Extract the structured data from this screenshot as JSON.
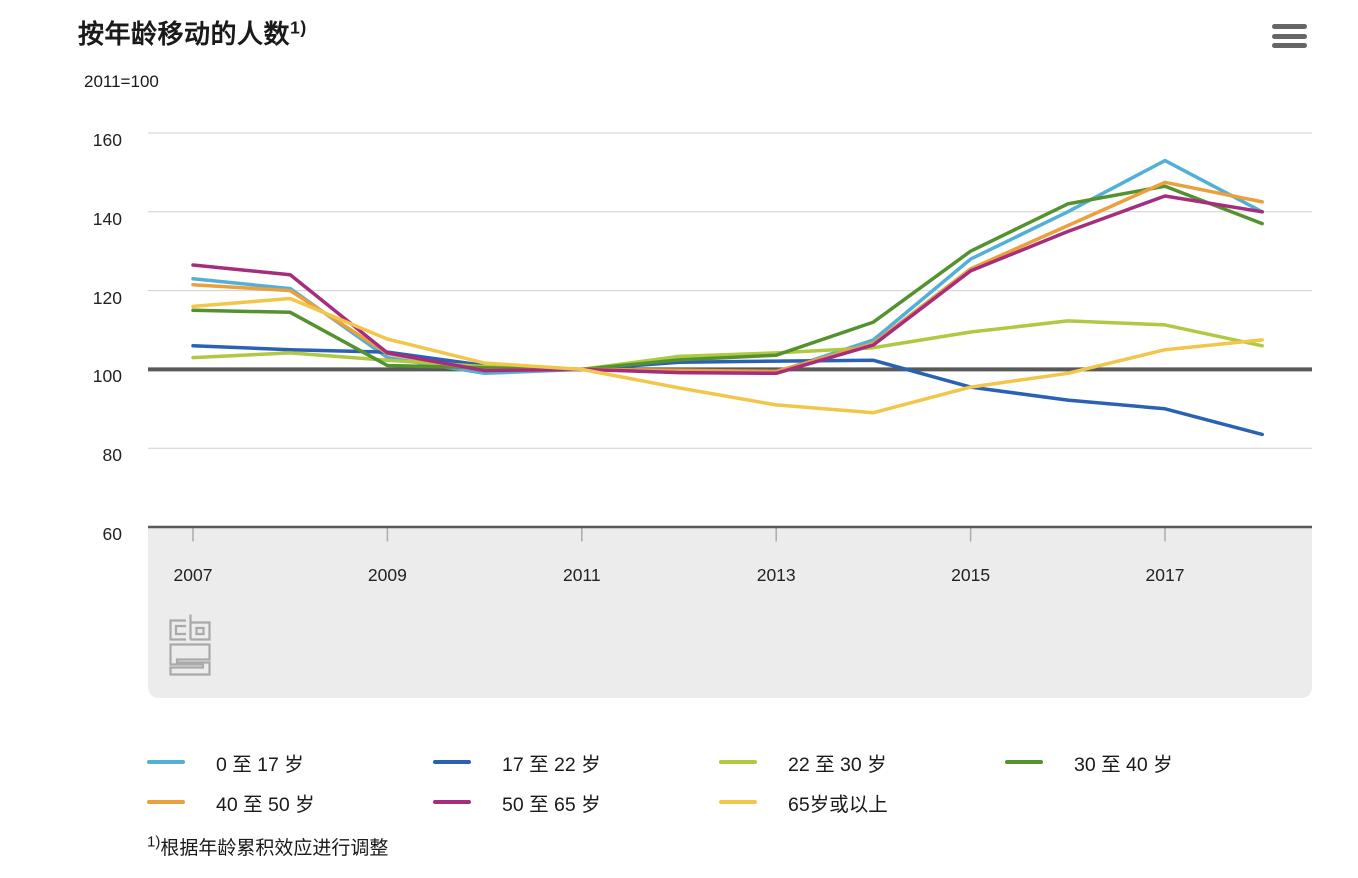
{
  "header": {
    "title": "按年龄移动的人数",
    "title_marker": "1)",
    "subtitle": "2011=100"
  },
  "menu": {
    "icon": "hamburger-icon"
  },
  "logo": {
    "name": "cbs-logo"
  },
  "footnote": {
    "marker": "1)",
    "text": "根据年龄累积效应进行调整"
  },
  "colors": {
    "axis_line": "#595959",
    "baseline": "#595959",
    "gridline": "#cfcfcf",
    "plot_band": "#ececec",
    "tick": "#ababab",
    "logo": "#a9a9a9",
    "menu_icon": "#666666",
    "text": "#1a1a1a"
  },
  "chart_data": {
    "type": "line",
    "title": "按年龄移动的人数 1)",
    "subtitle_index_note": "2011=100",
    "x": [
      2007,
      2008,
      2009,
      2010,
      2011,
      2012,
      2013,
      2014,
      2015,
      2016,
      2017,
      2018
    ],
    "x_ticks": [
      2007,
      2009,
      2011,
      2013,
      2015,
      2017
    ],
    "x_tick_labels": [
      "2007",
      "2009",
      "2011",
      "2013",
      "2015",
      "2017"
    ],
    "y_ticks": [
      60,
      80,
      100,
      120,
      140,
      160
    ],
    "y_tick_labels": [
      "60",
      "80",
      "100",
      "120",
      "140",
      "160"
    ],
    "ylim": [
      60,
      160
    ],
    "baseline_value": 100,
    "grid": "horizontal",
    "legend_position": "bottom",
    "series": [
      {
        "name": "0 至 17 岁",
        "color": "#53AFD6",
        "values": [
          123,
          120.5,
          103,
          99,
          100,
          99.7,
          99.3,
          107.5,
          128,
          140,
          153,
          140
        ]
      },
      {
        "name": "17 至 22 岁",
        "color": "#2B61B4",
        "values": [
          106,
          105,
          104.4,
          101,
          100,
          101.8,
          102.1,
          102.3,
          95.5,
          92.2,
          90,
          83.5
        ]
      },
      {
        "name": "22 至 30 岁",
        "color": "#AFC943",
        "values": [
          103,
          104.2,
          102.3,
          100.7,
          100,
          103.3,
          104.2,
          105.5,
          109.5,
          112.3,
          111.3,
          106
        ]
      },
      {
        "name": "30 至 40 岁",
        "color": "#549230",
        "values": [
          115,
          114.5,
          101,
          100.4,
          100,
          102.4,
          103.6,
          112,
          130,
          142,
          146.5,
          137
        ]
      },
      {
        "name": "40 至 50 岁",
        "color": "#EBA03E",
        "values": [
          121.5,
          120,
          104,
          99.7,
          100,
          99.8,
          99.5,
          106.6,
          125.5,
          136.5,
          147.5,
          142.5
        ]
      },
      {
        "name": "50 至 65 岁",
        "color": "#A62C7E",
        "values": [
          126.5,
          124,
          104.2,
          99.7,
          100,
          99.2,
          99,
          106.2,
          125,
          135,
          144,
          140
        ]
      },
      {
        "name": "65岁或以上",
        "color": "#F2C64A",
        "values": [
          116,
          118,
          107.7,
          101.6,
          100,
          95.3,
          91,
          89,
          95.5,
          99,
          105,
          107.5
        ]
      }
    ]
  }
}
